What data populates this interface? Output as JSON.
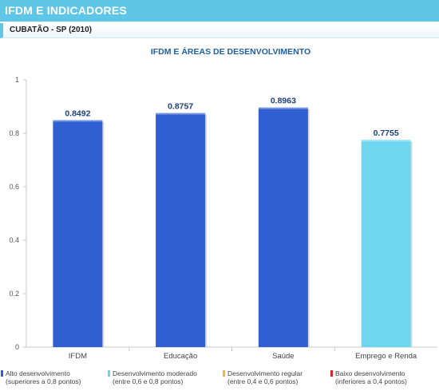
{
  "header": {
    "title": "IFDM E INDICADORES"
  },
  "subheader": {
    "location": "CUBATÃO - SP (2010)"
  },
  "chart_data": {
    "type": "bar",
    "title": "IFDM E ÁREAS DE DESENVOLVIMENTO",
    "categories": [
      "IFDM",
      "Educação",
      "Saúde",
      "Emprego e Renda"
    ],
    "values": [
      0.8492,
      0.8757,
      0.8963,
      0.7755
    ],
    "value_labels": [
      "0.8492",
      "0.8757",
      "0.8963",
      "0.7755"
    ],
    "bar_colors": [
      "#2f5fd0",
      "#2f5fd0",
      "#2f5fd0",
      "#6fd6f0"
    ],
    "ylim": [
      0,
      1
    ],
    "yticks": [
      0,
      0.2,
      0.4,
      0.6,
      0.8,
      1
    ],
    "ytick_labels": [
      "0",
      "0.2",
      "0.4",
      "0.6",
      "0.8",
      "1"
    ],
    "grid": false
  },
  "legend": [
    {
      "line1": "Alto desenvolvimento",
      "line2": "(superiores a 0,8 pontos)",
      "color": "#2f5fd0"
    },
    {
      "line1": "Desenvolvimento moderado",
      "line2": "(entre 0,6 e 0,8 pontos)",
      "color": "#6fd6f0"
    },
    {
      "line1": "Desenvolvimento regular",
      "line2": "(entre 0,4 e 0,6 pontos)",
      "color": "#f2b632"
    },
    {
      "line1": "Baixo desenvolvimento",
      "line2": "(inferiores a 0,4 pontos)",
      "color": "#d42a2a"
    }
  ]
}
